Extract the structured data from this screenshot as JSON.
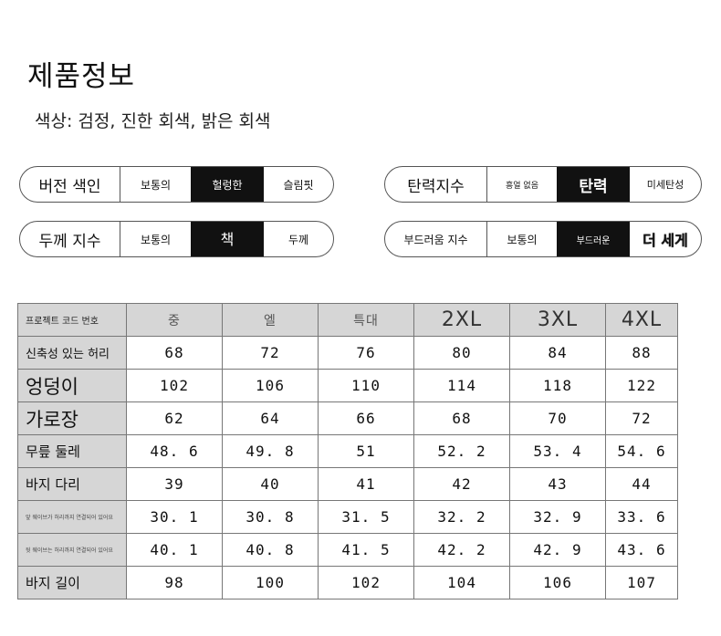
{
  "title": "제품정보",
  "colors_line": "색상: 검정, 진한 회색, 밝은 회색",
  "pills": {
    "version": {
      "label": "버전 색인",
      "options": [
        "보통의",
        "헐렁한",
        "슬림핏"
      ]
    },
    "elasticity": {
      "label": "탄력지수",
      "options": [
        "흥얼 없음",
        "탄력",
        "미세탄성"
      ]
    },
    "thickness": {
      "label": "두께 지수",
      "options": [
        "보통의",
        "책",
        "두께"
      ]
    },
    "softness": {
      "label": "부드러움 지수",
      "options": [
        "보통의",
        "부드러운",
        "더 세게"
      ]
    }
  },
  "size_table": {
    "headers": [
      "프로젝트 코드 번호",
      "중",
      "엘",
      "특대",
      "2XL",
      "3XL",
      "4XL"
    ],
    "rows": [
      {
        "label": "신축성 있는 허리",
        "values": [
          "68",
          "72",
          "76",
          "80",
          "84",
          "88"
        ]
      },
      {
        "label": "엉덩이",
        "values": [
          "102",
          "106",
          "110",
          "114",
          "118",
          "122"
        ]
      },
      {
        "label": "가로장",
        "values": [
          "62",
          "64",
          "66",
          "68",
          "70",
          "72"
        ]
      },
      {
        "label": "무릎 둘레",
        "values": [
          "48. 6",
          "49. 8",
          "51",
          "52. 2",
          "53. 4",
          "54. 6"
        ]
      },
      {
        "label": "바지 다리",
        "values": [
          "39",
          "40",
          "41",
          "42",
          "43",
          "44"
        ]
      },
      {
        "label": "앞 웨이브가 허리까지 연결되어 있어요",
        "values": [
          "30. 1",
          "30. 8",
          "31. 5",
          "32. 2",
          "32. 9",
          "33. 6"
        ]
      },
      {
        "label": "뒷 웨이브는 허리까지 연결되어 있어요",
        "values": [
          "40. 1",
          "40. 8",
          "41. 5",
          "42. 2",
          "42. 9",
          "43. 6"
        ]
      },
      {
        "label": "바지 길이",
        "values": [
          "98",
          "100",
          "102",
          "104",
          "106",
          "107"
        ]
      }
    ]
  }
}
